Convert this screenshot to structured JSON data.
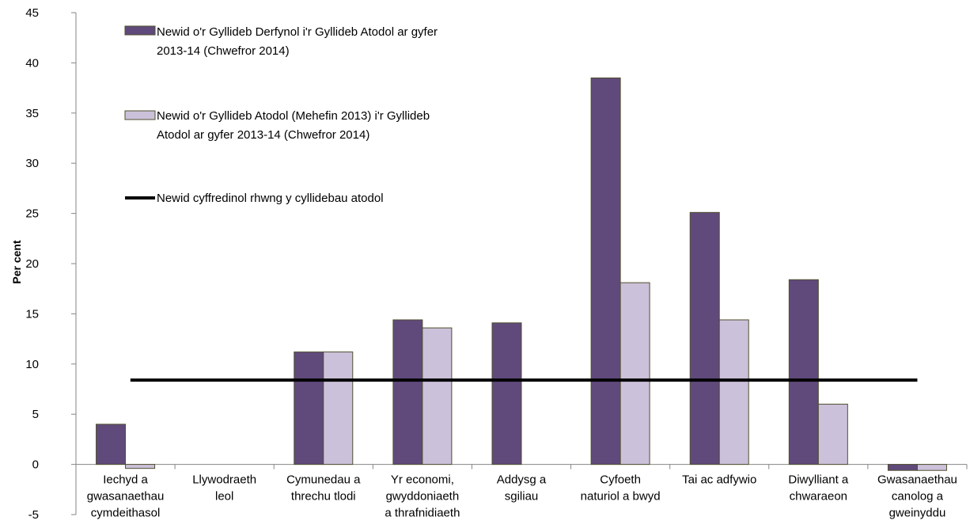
{
  "chart_data": {
    "type": "bar",
    "title": "",
    "xlabel": "",
    "ylabel": "Per cent",
    "ylim": [
      -5,
      45
    ],
    "ytick_step": 5,
    "grid": false,
    "legend_position": "top-left",
    "categories": [
      [
        "Iechyd a",
        "gwasanaethau",
        "cymdeithasol"
      ],
      [
        "Llywodraeth",
        "leol"
      ],
      [
        "Cymunedau a",
        "threchu tlodi"
      ],
      [
        "Yr economi,",
        "gwyddoniaeth",
        "a thrafnidiaeth"
      ],
      [
        "Addysg a",
        "sgiliau"
      ],
      [
        "Cyfoeth",
        "naturiol a bwyd"
      ],
      [
        "Tai ac adfywio"
      ],
      [
        "Diwylliant a",
        "chwaraeon"
      ],
      [
        "Gwasanaethau",
        "canolog a",
        "gweinyddu"
      ]
    ],
    "series": [
      {
        "name": [
          "Newid o'r Gyllideb Derfynol i'r Gyllideb Atodol ar gyfer",
          "2013-14 (Chwefror 2014)"
        ],
        "color": "#604a7b",
        "values": [
          4.0,
          0,
          11.2,
          14.4,
          14.1,
          38.5,
          25.1,
          18.4,
          -0.6
        ]
      },
      {
        "name": [
          "Newid o'r Gyllideb Atodol (Mehefin 2013) i'r Gyllideb",
          "Atodol ar gyfer 2013-14 (Chwefror 2014)"
        ],
        "color": "#ccc1da",
        "values": [
          -0.4,
          0,
          11.2,
          13.6,
          0,
          18.1,
          14.4,
          6.0,
          -0.6
        ]
      }
    ],
    "reference_line": {
      "name": "Newid cyffredinol rhwng y cyllidebau atodol",
      "value": 8.4,
      "color": "#000000"
    }
  }
}
